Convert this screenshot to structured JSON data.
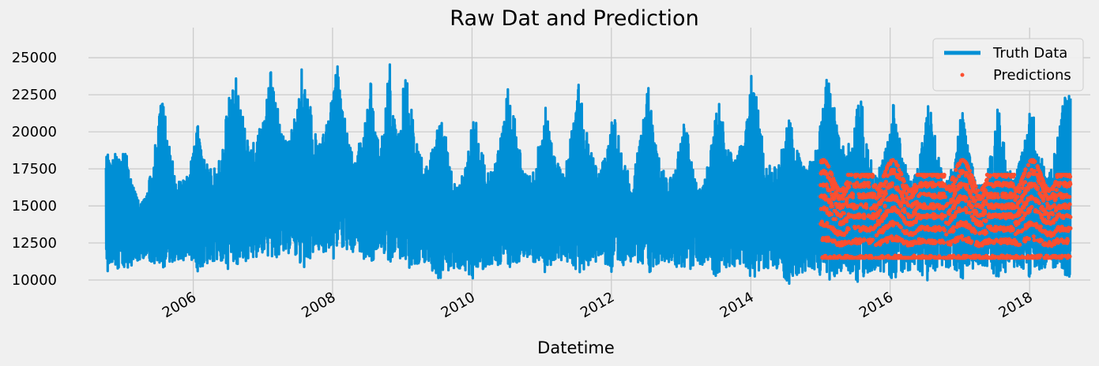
{
  "chart_data": {
    "type": "line",
    "title": "Raw Dat and Prediction",
    "xlabel": "Datetime",
    "ylabel": "",
    "grid": true,
    "legend_placement": "top-right",
    "xlim": [
      "2004-07-01",
      "2018-11-15"
    ],
    "ylim": [
      9200,
      26500
    ],
    "x_ticks": [
      "2006",
      "2008",
      "2010",
      "2012",
      "2014",
      "2016",
      "2018"
    ],
    "y_ticks": [
      "10000",
      "12500",
      "15000",
      "17500",
      "20000",
      "22500",
      "25000"
    ],
    "colors": {
      "background": "#f0f0f0",
      "grid": "#cbcbcb",
      "truth": "#008fd5",
      "predictions": "#fc4f30"
    },
    "series": [
      {
        "name": "Truth Data",
        "style": "line",
        "x_start": "2004-10-01",
        "x_end": "2018-08-03",
        "seasonal_peaks": [
          {
            "date": "2005-01-15",
            "high": 18500,
            "low": 10600
          },
          {
            "date": "2005-07-20",
            "high": 23000,
            "low": 10500
          },
          {
            "date": "2006-01-20",
            "high": 20700,
            "low": 10500
          },
          {
            "date": "2006-08-01",
            "high": 24900,
            "low": 10300
          },
          {
            "date": "2007-02-15",
            "high": 24400,
            "low": 11000
          },
          {
            "date": "2007-08-01",
            "high": 25200,
            "low": 10800
          },
          {
            "date": "2008-01-25",
            "high": 24600,
            "low": 11200
          },
          {
            "date": "2008-07-20",
            "high": 23400,
            "low": 10800
          },
          {
            "date": "2008-10-25",
            "high": 25700,
            "low": 11000
          },
          {
            "date": "2009-01-15",
            "high": 24700,
            "low": 10600
          },
          {
            "date": "2009-07-25",
            "high": 21800,
            "low": 9800
          },
          {
            "date": "2010-01-10",
            "high": 21700,
            "low": 10000
          },
          {
            "date": "2010-07-15",
            "high": 23700,
            "low": 10400
          },
          {
            "date": "2011-01-20",
            "high": 21700,
            "low": 10500
          },
          {
            "date": "2011-07-20",
            "high": 24100,
            "low": 10400
          },
          {
            "date": "2012-01-15",
            "high": 21600,
            "low": 10300
          },
          {
            "date": "2012-07-10",
            "high": 23400,
            "low": 10400
          },
          {
            "date": "2013-01-20",
            "high": 21100,
            "low": 10300
          },
          {
            "date": "2013-07-15",
            "high": 22600,
            "low": 10000
          },
          {
            "date": "2014-01-10",
            "high": 24500,
            "low": 10100
          },
          {
            "date": "2014-07-20",
            "high": 21200,
            "low": 9700
          },
          {
            "date": "2015-02-15",
            "high": 24900,
            "low": 9800
          },
          {
            "date": "2015-07-25",
            "high": 23300,
            "low": 9700
          },
          {
            "date": "2016-01-20",
            "high": 22100,
            "low": 9800
          },
          {
            "date": "2016-07-25",
            "high": 22500,
            "low": 9800
          },
          {
            "date": "2017-01-10",
            "high": 21800,
            "low": 10000
          },
          {
            "date": "2017-07-20",
            "high": 21800,
            "low": 9900
          },
          {
            "date": "2018-01-05",
            "high": 22900,
            "low": 10100
          },
          {
            "date": "2018-07-01",
            "high": 22500,
            "low": 9800
          }
        ]
      },
      {
        "name": "Predictions",
        "style": "points",
        "x_start": "2015-01-01",
        "x_end": "2018-08-03",
        "winter_max": 18100,
        "summer_max": 17100,
        "min": 11500
      }
    ]
  }
}
